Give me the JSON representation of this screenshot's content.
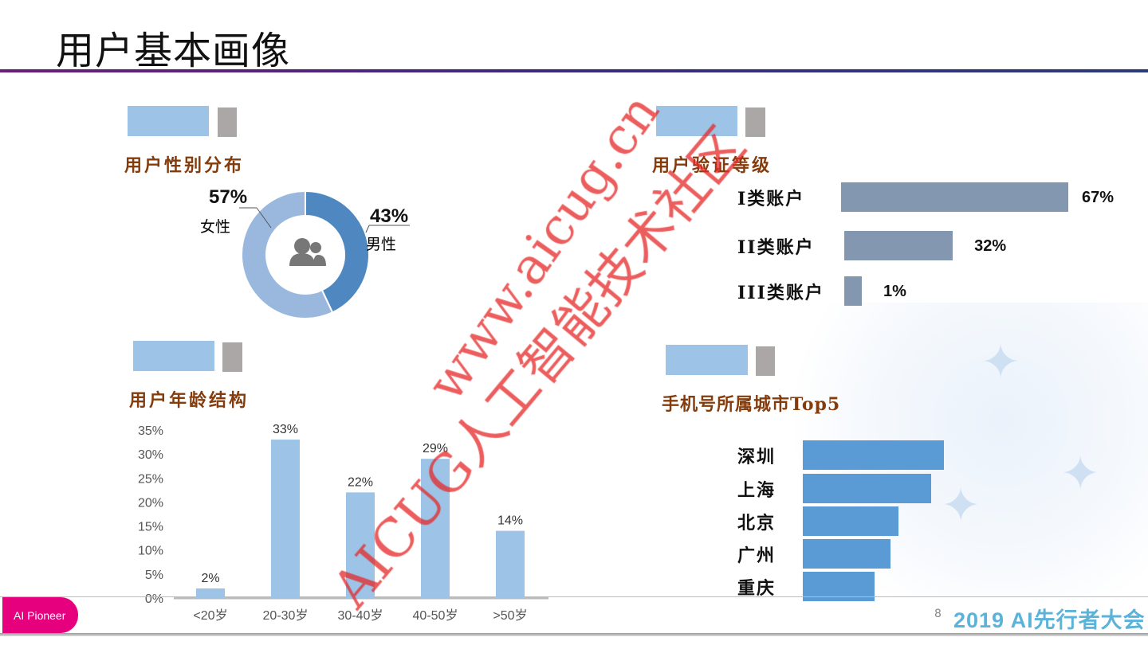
{
  "header": {
    "title": "用户基本画像"
  },
  "sections": {
    "gender": "用户性别分布",
    "verify": "用户验证等级",
    "age": "用户年龄结构",
    "city": "手机号所属城市Top5"
  },
  "chart_data": [
    {
      "type": "pie",
      "title": "用户性别分布",
      "donut": true,
      "categories": [
        "男性",
        "女性"
      ],
      "values": [
        43,
        57
      ],
      "labels": [
        "43%",
        "57%"
      ],
      "colors": [
        "#4f88c0",
        "#9ab8de"
      ]
    },
    {
      "type": "bar",
      "orientation": "horizontal",
      "title": "用户验证等级",
      "categories": [
        "I类账户",
        "II类账户",
        "III类账户"
      ],
      "values": [
        67,
        32,
        1
      ],
      "labels": [
        "67%",
        "32%",
        "1%"
      ],
      "color": "#8497b0"
    },
    {
      "type": "bar",
      "title": "用户年龄结构",
      "categories": [
        "<20岁",
        "20-30岁",
        "30-40岁",
        "40-50岁",
        ">50岁"
      ],
      "values": [
        2,
        33,
        22,
        29,
        14
      ],
      "labels": [
        "2%",
        "33%",
        "22%",
        "29%",
        "14%"
      ],
      "yticks": [
        "0%",
        "5%",
        "10%",
        "15%",
        "20%",
        "25%",
        "30%",
        "35%"
      ],
      "ylim": [
        0,
        35
      ],
      "color": "#9dc3e6"
    },
    {
      "type": "bar",
      "orientation": "horizontal",
      "title": "手机号所属城市Top5",
      "categories": [
        "深圳",
        "上海",
        "北京",
        "广州",
        "重庆"
      ],
      "values": [
        100,
        91,
        68,
        62,
        51
      ],
      "color": "#5b9bd5"
    }
  ],
  "footer": {
    "left": "AI Pioneer",
    "brand": "2019 AI先行者大会",
    "page": "8"
  },
  "watermark": {
    "url": "www.aicug.cn",
    "name": "AICUG人工智能技术社区"
  }
}
